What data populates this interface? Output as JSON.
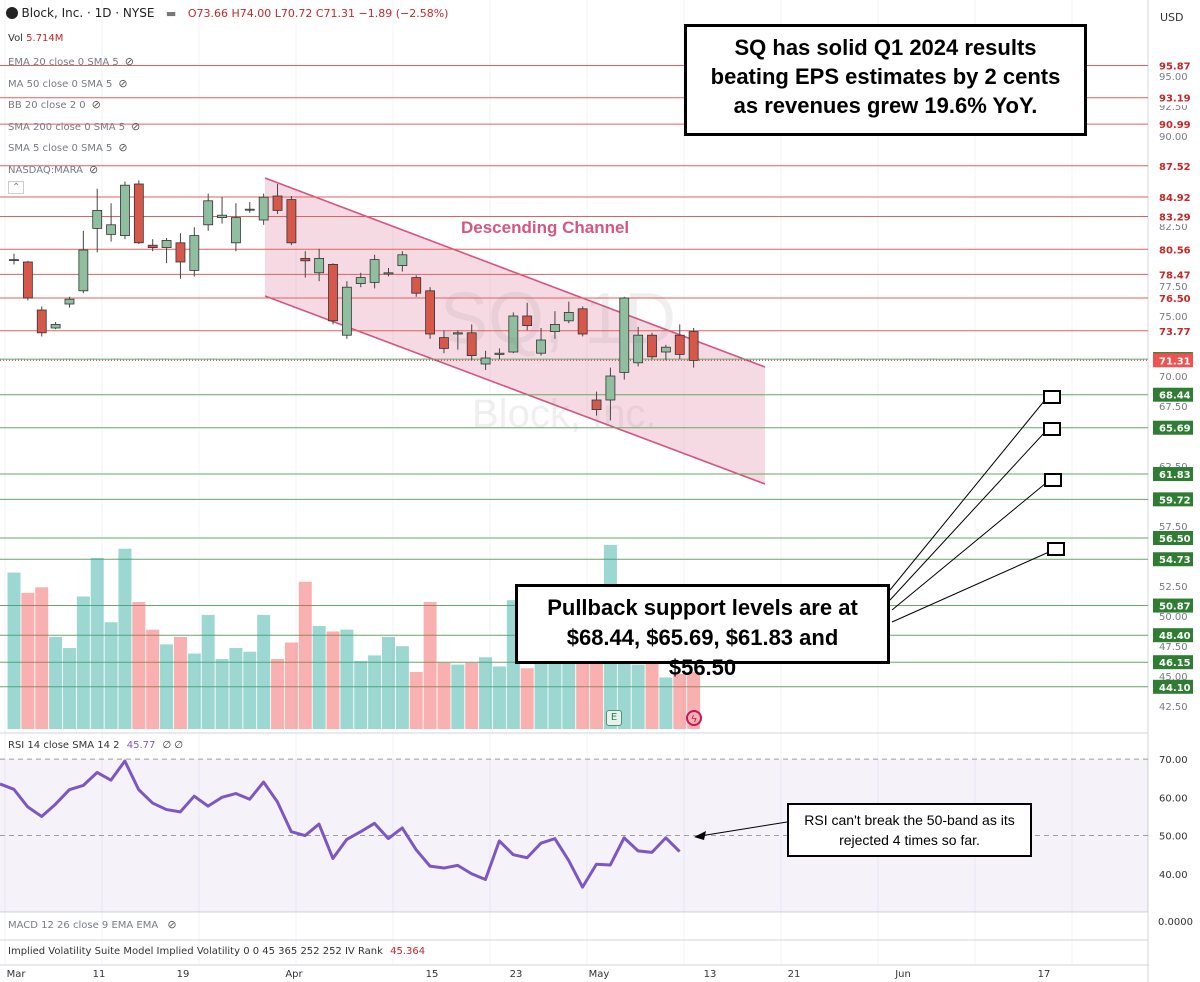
{
  "header": {
    "symbol": "Block, Inc. · 1D · NYSE",
    "ohlc": "O73.66 H74.00 L70.72 C71.31 −1.89 (−2.58%)",
    "vol_label": "Vol",
    "vol_value": "5.714M",
    "currency": "USD"
  },
  "indicators": [
    "EMA 20 close 0 SMA 5",
    "MA 50 close 0 SMA 5",
    "BB 20 close 2 0",
    "SMA 200 close 0 SMA 5",
    "SMA 5 close 0 SMA 5",
    "NASDAQ:MARA"
  ],
  "watermark": {
    "symbol": "SQ, 1D",
    "name": "Block, Inc."
  },
  "annotations": {
    "channel_label": "Descending Channel",
    "q1_callout": "SQ has solid Q1 2024 results beating EPS estimates by 2 cents as revenues grew 19.6% YoY.",
    "support_callout": "Pullback support levels are at $68.44, $65.69, $61.83 and $56.50",
    "rsi_callout": "RSI can't break the 50-band as its rejected 4 times so far.",
    "earnings_marker": "E"
  },
  "rsi_panel": {
    "label": "RSI 14 close SMA 14 2",
    "value": "45.77",
    "extra": "∅ ∅",
    "ticks": [
      "70.00",
      "60.00",
      "50.00",
      "40.00"
    ]
  },
  "macd_panel": {
    "label": "MACD 12 26 close 9 EMA EMA",
    "tick": "0.0000"
  },
  "iv_panel": {
    "label": "Implied Volatility Suite Model Implied Volatility 0 0 45 365 252 252 IV Rank",
    "value": "45.364"
  },
  "x_axis": [
    "Mar",
    "11",
    "19",
    "Apr",
    "15",
    "23",
    "May",
    "13",
    "21",
    "Jun",
    "17"
  ],
  "colors": {
    "up": "#8fbf9f",
    "down": "#d6584b",
    "channel": "#d5567f",
    "rsi": "#7e57c2",
    "level_red": "#e06060",
    "level_green": "#6aa56a"
  },
  "chart_data": {
    "type": "candlestick",
    "title": "Block, Inc. · 1D · NYSE",
    "ylim": [
      41.5,
      100
    ],
    "y_ticks": [
      "95.00",
      "92.50",
      "90.00",
      "82.50",
      "77.50",
      "75.00",
      "70.00",
      "67.50",
      "62.50",
      "57.50",
      "52.50",
      "50.00",
      "47.50",
      "45.00",
      "42.50"
    ],
    "candles": [
      [
        79.7,
        80.2,
        79.3,
        79.7
      ],
      [
        79.5,
        79.6,
        76.3,
        76.5
      ],
      [
        75.5,
        75.8,
        73.3,
        73.6
      ],
      [
        74.0,
        74.5,
        73.9,
        74.3
      ],
      [
        76.0,
        76.6,
        75.7,
        76.4
      ],
      [
        77.1,
        82.1,
        76.9,
        80.5
      ],
      [
        82.3,
        85.6,
        80.3,
        83.8
      ],
      [
        81.8,
        84.4,
        81.2,
        82.6
      ],
      [
        81.7,
        86.2,
        81.4,
        85.9
      ],
      [
        86.0,
        86.3,
        81.0,
        81.1
      ],
      [
        80.9,
        81.4,
        80.4,
        80.7
      ],
      [
        80.7,
        81.5,
        79.4,
        81.3
      ],
      [
        81.1,
        81.9,
        78.1,
        79.5
      ],
      [
        78.8,
        82.4,
        78.3,
        81.7
      ],
      [
        82.6,
        85.2,
        82.1,
        84.6
      ],
      [
        83.2,
        84.9,
        82.7,
        83.4
      ],
      [
        81.1,
        84.4,
        80.4,
        83.2
      ],
      [
        83.9,
        84.5,
        83.6,
        83.9
      ],
      [
        83.0,
        85.2,
        82.6,
        84.9
      ],
      [
        85.0,
        86.0,
        83.5,
        83.8
      ],
      [
        84.7,
        85.0,
        80.9,
        81.1
      ],
      [
        79.8,
        80.4,
        78.2,
        79.6
      ],
      [
        78.6,
        80.6,
        77.9,
        79.8
      ],
      [
        79.3,
        79.4,
        74.3,
        74.6
      ],
      [
        73.4,
        77.9,
        73.1,
        77.4
      ],
      [
        77.7,
        78.6,
        77.4,
        78.2
      ],
      [
        77.8,
        80.1,
        77.3,
        79.7
      ],
      [
        78.5,
        79.0,
        78.3,
        78.6
      ],
      [
        79.2,
        80.4,
        78.7,
        80.1
      ],
      [
        78.2,
        78.4,
        76.6,
        76.9
      ],
      [
        77.1,
        77.4,
        73.1,
        73.5
      ],
      [
        73.2,
        73.8,
        71.9,
        72.3
      ],
      [
        73.5,
        73.8,
        72.2,
        73.6
      ],
      [
        73.6,
        74.3,
        71.3,
        71.7
      ],
      [
        71.0,
        72.1,
        70.5,
        71.5
      ],
      [
        71.8,
        72.3,
        71.4,
        71.9
      ],
      [
        72.0,
        75.3,
        71.9,
        75.0
      ],
      [
        75.0,
        76.1,
        73.8,
        74.2
      ],
      [
        71.9,
        74.0,
        71.7,
        73.0
      ],
      [
        73.7,
        75.4,
        73.1,
        74.3
      ],
      [
        74.6,
        76.2,
        74.4,
        75.3
      ],
      [
        75.6,
        75.8,
        73.3,
        73.5
      ],
      [
        68.0,
        68.7,
        66.7,
        67.2
      ],
      [
        68.0,
        70.7,
        66.3,
        70.0
      ],
      [
        70.3,
        76.6,
        69.7,
        76.5
      ],
      [
        71.1,
        74.1,
        70.8,
        73.4
      ],
      [
        73.4,
        73.6,
        71.4,
        71.6
      ],
      [
        72.0,
        72.6,
        71.3,
        72.4
      ],
      [
        73.4,
        74.3,
        71.4,
        71.8
      ],
      [
        73.7,
        74.0,
        70.7,
        71.3
      ]
    ],
    "price_levels": [
      {
        "value": 95.87,
        "label": "95.87",
        "color": "red"
      },
      {
        "value": 93.19,
        "label": "93.19",
        "color": "red"
      },
      {
        "value": 90.99,
        "label": "90.99",
        "color": "red"
      },
      {
        "value": 87.52,
        "label": "87.52",
        "color": "red"
      },
      {
        "value": 84.92,
        "label": "84.92",
        "color": "red"
      },
      {
        "value": 83.29,
        "label": "83.29",
        "color": "red"
      },
      {
        "value": 80.56,
        "label": "80.56",
        "color": "red"
      },
      {
        "value": 78.47,
        "label": "78.47",
        "color": "red"
      },
      {
        "value": 76.5,
        "label": "76.50",
        "color": "red"
      },
      {
        "value": 73.77,
        "label": "73.77",
        "color": "red"
      },
      {
        "value": 71.41,
        "label": "71.41",
        "color": "green"
      },
      {
        "value": 71.31,
        "label": "71.31",
        "color": "current"
      },
      {
        "value": 68.44,
        "label": "68.44",
        "color": "green"
      },
      {
        "value": 65.69,
        "label": "65.69",
        "color": "green"
      },
      {
        "value": 61.83,
        "label": "61.83",
        "color": "green"
      },
      {
        "value": 59.72,
        "label": "59.72",
        "color": "green"
      },
      {
        "value": 56.5,
        "label": "56.50",
        "color": "green"
      },
      {
        "value": 54.73,
        "label": "54.73",
        "color": "green"
      },
      {
        "value": 50.87,
        "label": "50.87",
        "color": "green"
      },
      {
        "value": 48.4,
        "label": "48.40",
        "color": "green"
      },
      {
        "value": 46.15,
        "label": "46.15",
        "color": "green"
      },
      {
        "value": 44.1,
        "label": "44.10",
        "color": "green"
      }
    ],
    "volume_relative": [
      0.85,
      0.74,
      0.77,
      0.5,
      0.44,
      0.72,
      0.93,
      0.58,
      0.98,
      0.69,
      0.54,
      0.46,
      0.5,
      0.41,
      0.62,
      0.38,
      0.44,
      0.42,
      0.62,
      0.38,
      0.47,
      0.8,
      0.56,
      0.53,
      0.54,
      0.37,
      0.4,
      0.5,
      0.45,
      0.31,
      0.69,
      0.36,
      0.35,
      0.36,
      0.39,
      0.34,
      0.7,
      0.33,
      0.46,
      0.42,
      0.38,
      0.37,
      0.5,
      1.0,
      0.46,
      0.35,
      0.38,
      0.28,
      0.3,
      0.31
    ],
    "rsi": [
      63.5,
      62.1,
      57.5,
      55.0,
      58.2,
      62.0,
      63.1,
      66.5,
      64.5,
      69.5,
      62.0,
      58.5,
      56.8,
      56.2,
      60.3,
      57.7,
      60.0,
      61.0,
      59.5,
      64.0,
      58.8,
      51.0,
      50.0,
      53.0,
      44.0,
      49.0,
      51.0,
      53.2,
      49.2,
      52.0,
      46.3,
      42.0,
      41.5,
      42.2,
      40.0,
      38.5,
      48.6,
      45.0,
      44.2,
      48.0,
      49.2,
      43.5,
      36.5,
      42.5,
      42.3,
      49.4,
      46.0,
      45.6,
      49.4,
      45.8
    ],
    "rsi_ylim": [
      30,
      75
    ],
    "rsi_bands": [
      70,
      50
    ]
  }
}
